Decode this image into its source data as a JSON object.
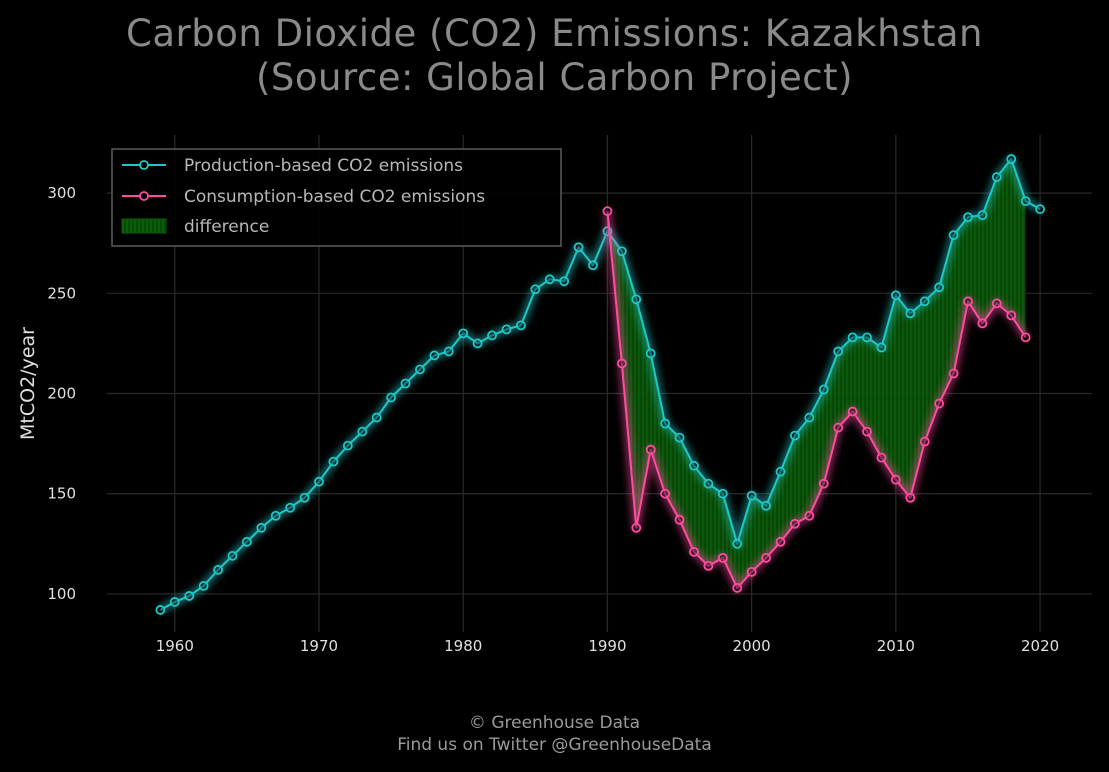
{
  "chart_data": {
    "type": "line",
    "title": "Carbon Dioxide (CO2) Emissions: Kazakhstan",
    "subtitle": "(Source: Global Carbon Project)",
    "xlabel": "",
    "ylabel": "MtCO2/year",
    "xlim": [
      1955.3,
      2023.6
    ],
    "ylim": [
      81,
      329
    ],
    "xticks": [
      1960,
      1970,
      1980,
      1990,
      2000,
      2010,
      2020
    ],
    "yticks": [
      100,
      150,
      200,
      250,
      300
    ],
    "grid": true,
    "legend_position": "top-left",
    "legend": [
      "Production-based CO2 emissions",
      "Consumption-based CO2 emissions",
      "difference"
    ],
    "series": [
      {
        "name": "Production-based CO2 emissions",
        "color": "#1fc8c8",
        "x": [
          1959,
          1960,
          1961,
          1962,
          1963,
          1964,
          1965,
          1966,
          1967,
          1968,
          1969,
          1970,
          1971,
          1972,
          1973,
          1974,
          1975,
          1976,
          1977,
          1978,
          1979,
          1980,
          1981,
          1982,
          1983,
          1984,
          1985,
          1986,
          1987,
          1988,
          1989,
          1990,
          1991,
          1992,
          1993,
          1994,
          1995,
          1996,
          1997,
          1998,
          1999,
          2000,
          2001,
          2002,
          2003,
          2004,
          2005,
          2006,
          2007,
          2008,
          2009,
          2010,
          2011,
          2012,
          2013,
          2014,
          2015,
          2016,
          2017,
          2018,
          2019,
          2020
        ],
        "y": [
          92,
          96,
          99,
          104,
          112,
          119,
          126,
          133,
          139,
          143,
          148,
          156,
          166,
          174,
          181,
          188,
          198,
          205,
          212,
          219,
          221,
          230,
          225,
          229,
          232,
          234,
          252,
          257,
          256,
          273,
          264,
          281,
          271,
          247,
          220,
          185,
          178,
          164,
          155,
          150,
          125,
          149,
          144,
          161,
          179,
          188,
          202,
          221,
          228,
          228,
          223,
          249,
          240,
          246,
          253,
          279,
          288,
          289,
          308,
          317,
          296,
          292
        ]
      },
      {
        "name": "Consumption-based CO2 emissions",
        "color": "#ff4ca0",
        "x": [
          1990,
          1991,
          1992,
          1993,
          1994,
          1995,
          1996,
          1997,
          1998,
          1999,
          2000,
          2001,
          2002,
          2003,
          2004,
          2005,
          2006,
          2007,
          2008,
          2009,
          2010,
          2011,
          2012,
          2013,
          2014,
          2015,
          2016,
          2017,
          2018,
          2019
        ],
        "y": [
          291,
          215,
          133,
          172,
          150,
          137,
          121,
          114,
          118,
          103,
          111,
          118,
          126,
          135,
          139,
          155,
          183,
          191,
          181,
          168,
          157,
          148,
          176,
          195,
          210,
          246,
          235,
          245,
          239,
          228
        ]
      }
    ],
    "fill_color": "#0b5e0b"
  },
  "footer": {
    "line1": "© Greenhouse Data",
    "line2": "Find us on Twitter @GreenhouseData"
  }
}
